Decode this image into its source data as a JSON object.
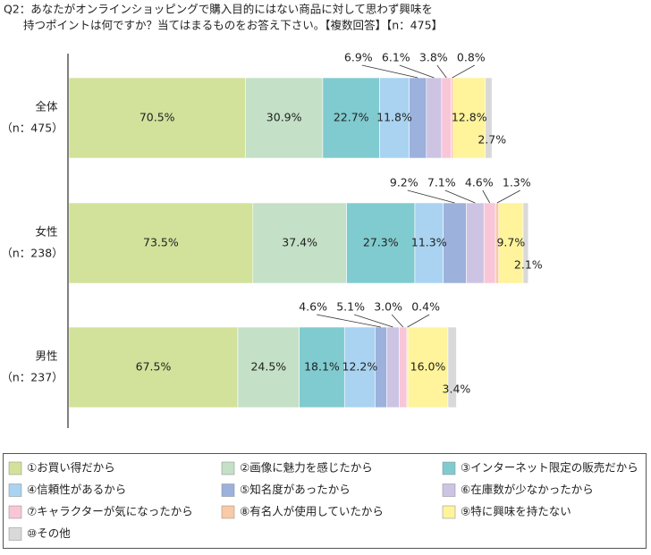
{
  "chart_data": {
    "type": "stacked-bar-horizontal",
    "title": [
      "Q2：あなたがオンラインショッピングで購入目的にはない商品に対して思わず興味を",
      "持つポイントは何ですか？当てはまるものをお答え下さい。【複数回答】【n：475】"
    ],
    "categories": [
      "全体",
      "女性",
      "男性"
    ],
    "category_sublabels": [
      "（n：475）",
      "（n：238）",
      "（n：237）"
    ],
    "series": [
      {
        "name": "①お買い得だから",
        "color": "#d2e29b",
        "values": [
          70.5,
          73.5,
          67.5
        ],
        "value_labels": [
          "70.5%",
          "73.5%",
          "67.5%"
        ]
      },
      {
        "name": "②画像に魅力を感じたから",
        "color": "#c4e0c6",
        "values": [
          30.9,
          37.4,
          24.5
        ],
        "value_labels": [
          "30.9%",
          "37.4%",
          "24.5%"
        ]
      },
      {
        "name": "③インターネット限定の販売だから",
        "color": "#80cbcf",
        "values": [
          22.7,
          27.3,
          18.1
        ],
        "value_labels": [
          "22.7%",
          "27.3%",
          "18.1%"
        ]
      },
      {
        "name": "④信頼性があるから",
        "color": "#a9d3f0",
        "values": [
          11.8,
          11.3,
          12.2
        ],
        "value_labels": [
          "11.8%",
          "11.3%",
          "12.2%"
        ]
      },
      {
        "name": "⑤知名度があったから",
        "color": "#9cb1dc",
        "values": [
          6.9,
          9.2,
          4.6
        ],
        "value_labels": [
          "6.9%",
          "9.2%",
          "4.6%"
        ]
      },
      {
        "name": "⑥在庫数が少なかったから",
        "color": "#cdc4e4",
        "values": [
          6.1,
          7.1,
          5.1
        ],
        "value_labels": [
          "6.1%",
          "7.1%",
          "5.1%"
        ]
      },
      {
        "name": "⑦キャラクターが気になったから",
        "color": "#f8c6d7",
        "values": [
          3.8,
          4.6,
          3.0
        ],
        "value_labels": [
          "3.8%",
          "4.6%",
          "3.0%"
        ]
      },
      {
        "name": "⑧有名人が使用していたから",
        "color": "#f9caa6",
        "values": [
          0.8,
          1.3,
          0.4
        ],
        "value_labels": [
          "0.8%",
          "1.3%",
          "0.4%"
        ]
      },
      {
        "name": "⑨特に興味を持たない",
        "color": "#fff39b",
        "values": [
          12.8,
          9.7,
          16.0
        ],
        "value_labels": [
          "12.8%",
          "9.7%",
          "16.0%"
        ]
      },
      {
        "name": "⑩その他",
        "color": "#d9d9d9",
        "values": [
          2.7,
          2.1,
          3.4
        ],
        "value_labels": [
          "2.7%",
          "2.1%",
          "3.4%"
        ]
      }
    ]
  }
}
